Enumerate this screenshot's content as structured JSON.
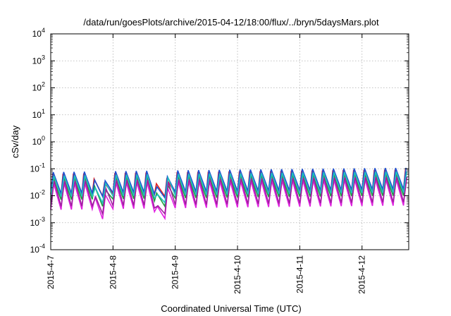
{
  "chart_data": {
    "type": "line",
    "title": "/data/run/goesPlots/archive/2015-04-12/18:00/flux/../bryn/5daysMars.plot",
    "xlabel": "Coordinated Universal Time (UTC)",
    "ylabel": "cSv/day",
    "y_scale": "log",
    "grid": true,
    "ylim": [
      0.0001,
      10000
    ],
    "y_ticks": [
      {
        "base": "10",
        "exp": "-4",
        "value": 0.0001
      },
      {
        "base": "10",
        "exp": "-3",
        "value": 0.001
      },
      {
        "base": "10",
        "exp": "-2",
        "value": 0.01
      },
      {
        "base": "10",
        "exp": "-1",
        "value": 0.1
      },
      {
        "base": "10",
        "exp": "0",
        "value": 1
      },
      {
        "base": "10",
        "exp": "1",
        "value": 10
      },
      {
        "base": "10",
        "exp": "2",
        "value": 100
      },
      {
        "base": "10",
        "exp": "3",
        "value": 1000
      },
      {
        "base": "10",
        "exp": "4",
        "value": 10000
      }
    ],
    "xlim": [
      "2015-04-07",
      "2015-04-12 18:00"
    ],
    "x_ticks": [
      "2015-4-7",
      "2015-4-8",
      "2015-4-9",
      "2015-4-10",
      "2015-4-11",
      "2015-4-12"
    ],
    "pulse_period_hours": 4,
    "series": [
      {
        "color": "#e02020",
        "peak": 0.065,
        "trough": 0.011
      },
      {
        "color": "#20a040",
        "peak": 0.05,
        "trough": 0.007
      },
      {
        "color": "#2050d0",
        "peak": 0.075,
        "trough": 0.012
      },
      {
        "color": "#e020e0",
        "peak": 0.03,
        "trough": 0.003
      },
      {
        "color": "#20c0c0",
        "peak": 0.055,
        "trough": 0.009
      },
      {
        "color": "#a020a0",
        "peak": 0.035,
        "trough": 0.004
      }
    ],
    "dips": [
      {
        "time": "2015-04-07 19:00",
        "min_values": [
          0.009,
          0.003,
          0.008,
          0.0009,
          0.004,
          0.0015
        ]
      },
      {
        "time": "2015-04-08 18:30",
        "min_values": [
          0.007,
          0.002,
          0.005,
          0.0006,
          0.003,
          0.001
        ]
      }
    ]
  }
}
